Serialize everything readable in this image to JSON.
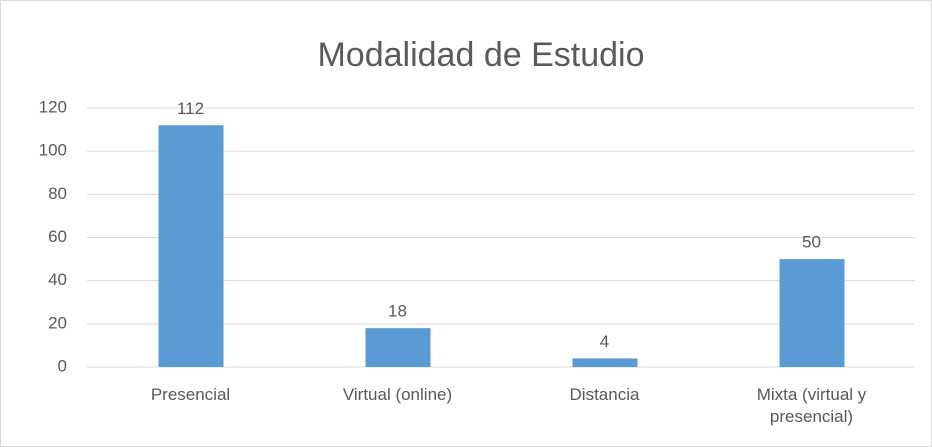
{
  "chart_data": {
    "type": "bar",
    "title": "Modalidad de Estudio",
    "categories": [
      "Presencial",
      "Virtual (online)",
      "Distancia",
      "Mixta (virtual y presencial)"
    ],
    "values": [
      112,
      18,
      4,
      50
    ],
    "color": "#5b9bd5",
    "ylim": [
      0,
      120
    ],
    "yticks": [
      0,
      20,
      40,
      60,
      80,
      100,
      120
    ],
    "grid": true,
    "data_labels": true
  }
}
